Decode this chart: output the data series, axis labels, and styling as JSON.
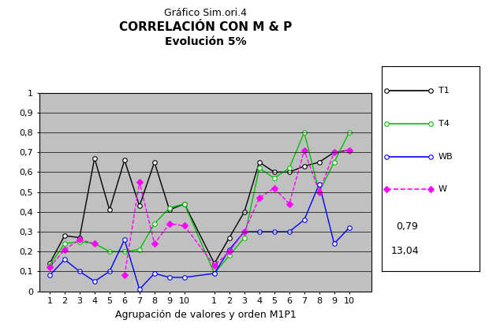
{
  "title_top": "Gráfico Sim.ori.4",
  "title_main": "CORRELACIÓN CON M & P",
  "title_sub": "Evolución 5%",
  "xlabel": "Agrupación de valores y orden M1P1",
  "ylabel": "",
  "ylim": [
    0,
    1.0
  ],
  "yticks": [
    0,
    0.1,
    0.2,
    0.3,
    0.4,
    0.5,
    0.6,
    0.7,
    0.8,
    0.9,
    1
  ],
  "ytick_labels": [
    "0",
    "0,1",
    "0,2",
    "0,3",
    "0,4",
    "0,5",
    "0,6",
    "0,7",
    "0,8",
    "0,9",
    "1"
  ],
  "background_color": "#C0C0C0",
  "T1_group1": [
    0.14,
    0.28,
    0.27,
    0.67,
    0.41,
    0.66,
    0.43,
    0.65,
    0.41,
    0.44
  ],
  "T1_group2": [
    0.14,
    0.27,
    0.4,
    0.65,
    0.6,
    0.6,
    0.63,
    0.65,
    0.7,
    0.71
  ],
  "T4_group1": [
    0.13,
    0.24,
    0.25,
    0.24,
    0.2,
    0.2,
    0.21,
    0.34,
    0.42,
    0.44
  ],
  "T4_group2": [
    0.09,
    0.18,
    0.27,
    0.62,
    0.57,
    0.62,
    0.8,
    0.5,
    0.65,
    0.8
  ],
  "WB_group1": [
    0.08,
    0.16,
    0.1,
    0.05,
    0.1,
    0.26,
    0.01,
    0.09,
    0.07,
    0.07
  ],
  "WB_group2": [
    0.09,
    0.21,
    0.3,
    0.3,
    0.3,
    0.3,
    0.36,
    0.54,
    0.24,
    0.32
  ],
  "W_group1": [
    0.12,
    0.21,
    0.26,
    0.24,
    null,
    0.08,
    0.55,
    0.24,
    0.34,
    0.33
  ],
  "W_group2": [
    0.13,
    0.2,
    0.3,
    0.47,
    0.52,
    0.44,
    0.71,
    0.5,
    0.7,
    0.71
  ],
  "legend_text_0079": "0,79",
  "legend_text_1304": "13,04",
  "colors": {
    "T1": "#000000",
    "T4": "#00C000",
    "WB": "#0000FF",
    "W": "#FF00FF"
  }
}
